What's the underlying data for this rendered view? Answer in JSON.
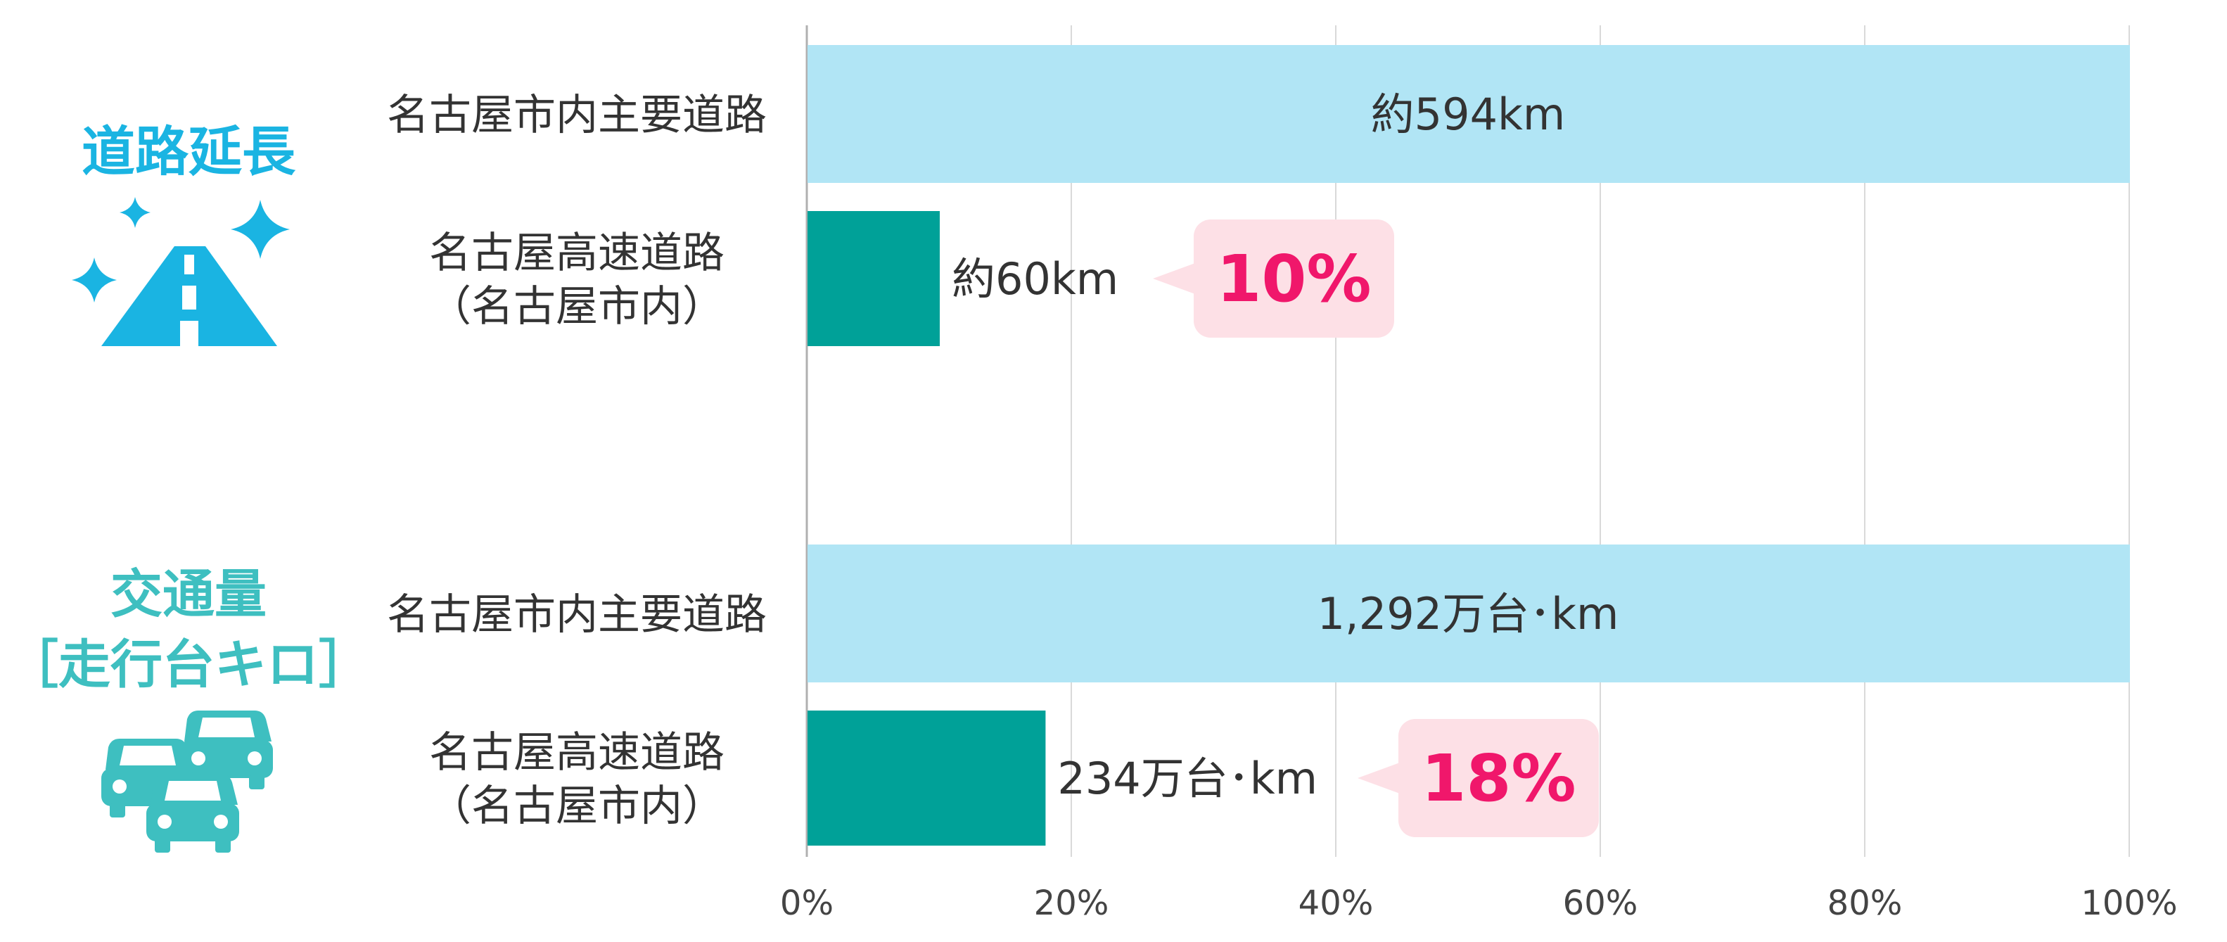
{
  "sections": [
    {
      "title_lines": [
        "道路延長"
      ],
      "icon": "road-icon",
      "rows": [
        {
          "label_lines": [
            "名古屋市内主要道路"
          ],
          "value_label": "約594km"
        },
        {
          "label_lines": [
            "名古屋高速道路",
            "（名古屋市内）"
          ],
          "value_label": "約60km",
          "callout": "10%"
        }
      ]
    },
    {
      "title_lines": [
        "交通量",
        "［走行台キロ］"
      ],
      "icon": "cars-icon",
      "rows": [
        {
          "label_lines": [
            "名古屋市内主要道路"
          ],
          "value_label": "1,292万台･km"
        },
        {
          "label_lines": [
            "名古屋高速道路",
            "（名古屋市内）"
          ],
          "value_label": "234万台･km",
          "callout": "18%"
        }
      ]
    }
  ],
  "chart_data": {
    "type": "bar",
    "orientation": "horizontal",
    "categories": [
      "名古屋市内主要道路",
      "名古屋高速道路（名古屋市内）",
      "名古屋市内主要道路",
      "名古屋高速道路（名古屋市内）"
    ],
    "values": [
      100,
      10,
      100,
      18
    ],
    "value_labels": [
      "約594km",
      "約60km",
      "1,292万台･km",
      "234万台･km"
    ],
    "callouts": [
      "",
      "10%",
      "",
      "18%"
    ],
    "groups": [
      "道路延長",
      "交通量［走行台キロ］"
    ],
    "x_ticks": [
      "0%",
      "20%",
      "40%",
      "60%",
      "80%",
      "100%"
    ],
    "xlim": [
      0,
      100
    ],
    "grid": true
  },
  "colors": {
    "primary_bar": "#b1e5f5",
    "highway_bar": "#00a198",
    "title_road": "#1ab4e2",
    "title_traffic": "#3ebfc0",
    "callout_bg": "#fde0e6",
    "callout_text": "#f0176b",
    "grid": "#d9d9d9",
    "axis": "#b0b0b0"
  }
}
